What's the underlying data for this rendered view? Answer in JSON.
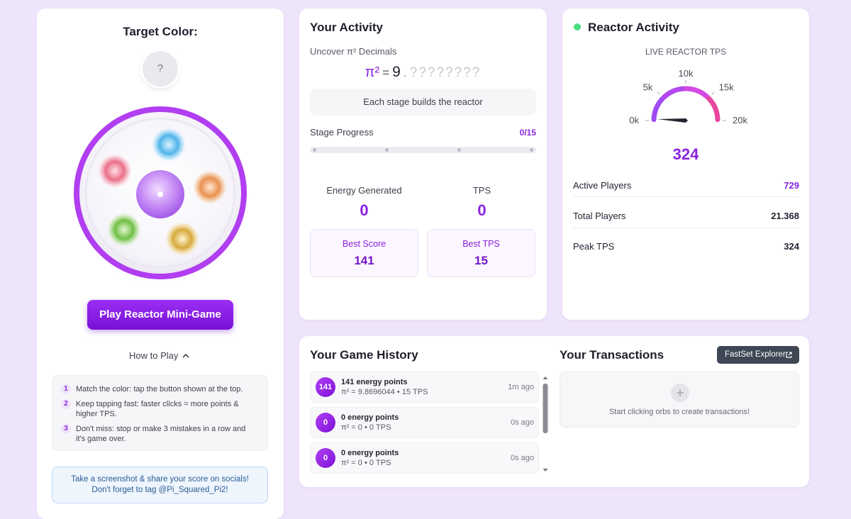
{
  "game": {
    "target_label": "Target Color:",
    "target_value": "?",
    "play_button": "Play Reactor Mini-Game",
    "how_to_play": "How to Play",
    "steps": [
      {
        "number": "1",
        "text": "Match the color: tap the button shown at the top."
      },
      {
        "number": "2",
        "text": "Keep tapping fast: faster clicks = more points & higher TPS."
      },
      {
        "number": "3",
        "text": "Don't miss: stop or make 3 mistakes in a row and it's game over."
      }
    ],
    "share_note": "Take a screenshot & share your score on socials! Don't forget to tag @Pi_Squared_Pi2!"
  },
  "activity": {
    "title": "Your Activity",
    "decimals_label": "Uncover π² Decimals",
    "pi_symbol": "π²",
    "equals": "=",
    "integer": "9",
    "point": ".",
    "hidden_digits": "????????",
    "stage_note": "Each stage builds the reactor",
    "stage_label": "Stage Progress",
    "stage_value": "0/15",
    "energy": {
      "label": "Energy Generated",
      "value": 0
    },
    "tps": {
      "label": "TPS",
      "value": 0
    },
    "best_score": {
      "label": "Best Score",
      "value": 141
    },
    "best_tps": {
      "label": "Best TPS",
      "value": 15
    }
  },
  "reactor": {
    "title": "Reactor Activity",
    "gauge_label": "LIVE REACTOR TPS",
    "gauge_ticks": [
      {
        "value": 0,
        "label": "0k"
      },
      {
        "value": 5000,
        "label": "5k"
      },
      {
        "value": 10000,
        "label": "10k"
      },
      {
        "value": 15000,
        "label": "15k"
      },
      {
        "value": 20000,
        "label": "20k"
      }
    ],
    "tps": 324,
    "stats": [
      {
        "label": "Active Players",
        "value": 729
      },
      {
        "label": "Total Players",
        "value": "21.368"
      },
      {
        "label": "Peak TPS",
        "value": 324
      }
    ]
  },
  "history": {
    "title": "Your Game History",
    "entries": [
      {
        "badge": "141",
        "points": "141 energy points",
        "detail": "π² = 9.8696044 • 15 TPS",
        "time": "1m ago"
      },
      {
        "badge": "0",
        "points": "0 energy points",
        "detail": "π² = 0 • 0 TPS",
        "time": "0s ago"
      },
      {
        "badge": "0",
        "points": "0 energy points",
        "detail": "π² = 0 • 0 TPS",
        "time": "0s ago"
      }
    ]
  },
  "transactions": {
    "title": "Your Transactions",
    "explorer_button": "FastSet Explorer",
    "empty_note": "Start clicking orbs to create transactions!"
  }
}
